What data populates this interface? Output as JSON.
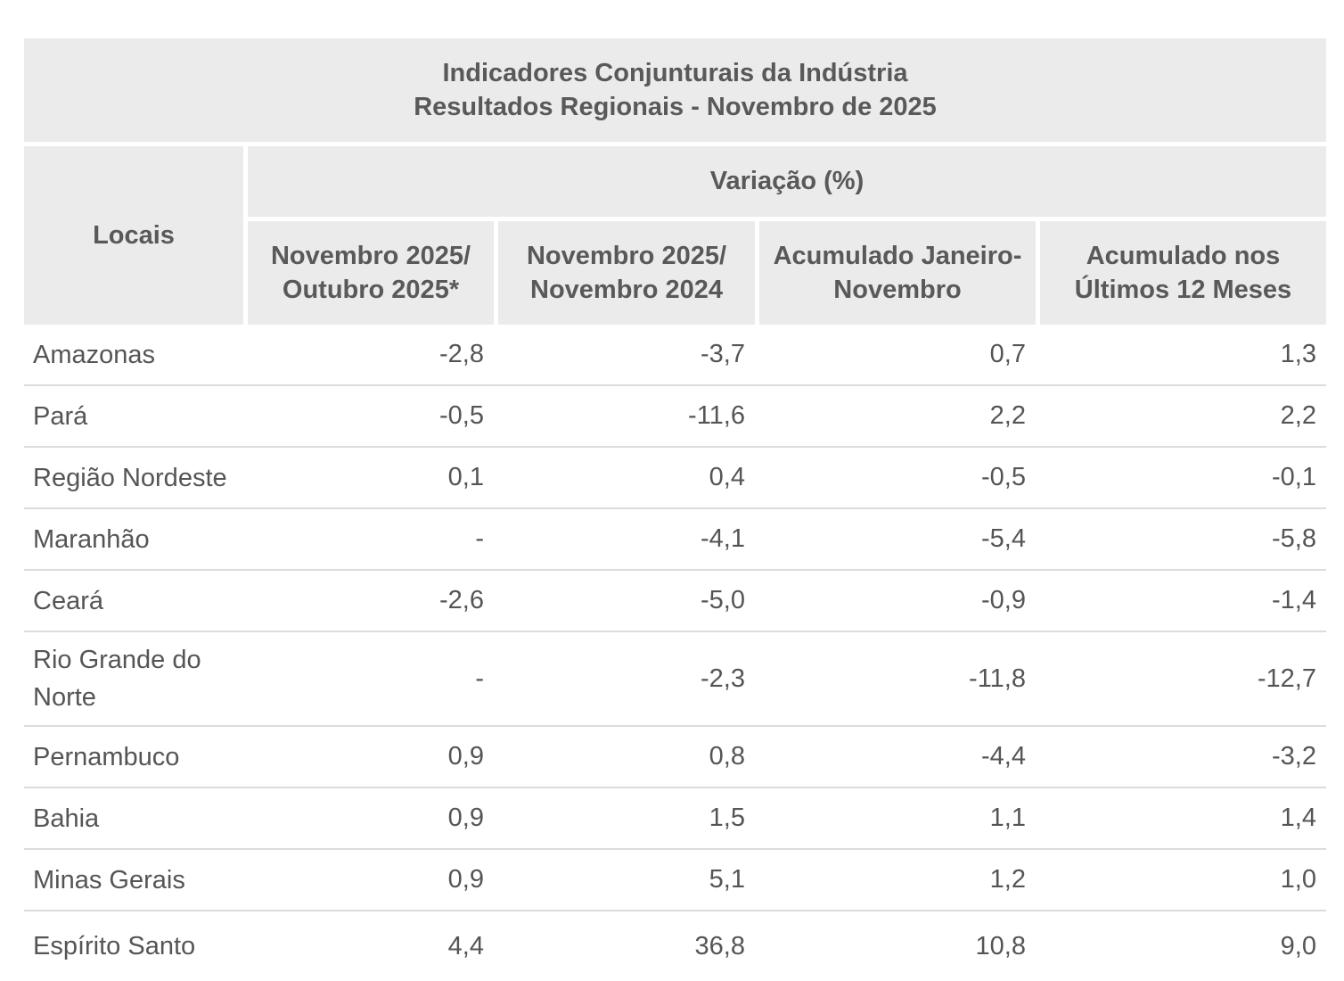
{
  "title": {
    "line1": "Indicadores Conjunturais da Indústria",
    "line2": "Resultados Regionais - Novembro de 2025"
  },
  "table": {
    "corner_header": "Locais",
    "group_header": "Variação (%)",
    "columns": [
      {
        "line1": "Novembro 2025/",
        "line2": "Outubro 2025*"
      },
      {
        "line1": "Novembro 2025/",
        "line2": "Novembro 2024"
      },
      {
        "line1": "Acumulado Janeiro-",
        "line2": "Novembro"
      },
      {
        "line1": "Acumulado nos",
        "line2": "Últimos 12 Meses"
      }
    ],
    "rows": [
      {
        "local": "Amazonas",
        "values": [
          "-2,8",
          "-3,7",
          "0,7",
          "1,3"
        ]
      },
      {
        "local": "Pará",
        "values": [
          "-0,5",
          "-11,6",
          "2,2",
          "2,2"
        ]
      },
      {
        "local": "Região Nordeste",
        "values": [
          "0,1",
          "0,4",
          "-0,5",
          "-0,1"
        ]
      },
      {
        "local": "Maranhão",
        "values": [
          "-",
          "-4,1",
          "-5,4",
          "-5,8"
        ]
      },
      {
        "local": "Ceará",
        "values": [
          "-2,6",
          "-5,0",
          "-0,9",
          "-1,4"
        ]
      },
      {
        "local": "Rio Grande do Norte",
        "values": [
          "-",
          "-2,3",
          "-11,8",
          "-12,7"
        ]
      },
      {
        "local": "Pernambuco",
        "values": [
          "0,9",
          "0,8",
          "-4,4",
          "-3,2"
        ]
      },
      {
        "local": "Bahia",
        "values": [
          "0,9",
          "1,5",
          "1,1",
          "1,4"
        ]
      },
      {
        "local": "Minas Gerais",
        "values": [
          "0,9",
          "5,1",
          "1,2",
          "1,0"
        ]
      },
      {
        "local": "Espírito Santo",
        "values": [
          "4,4",
          "36,8",
          "10,8",
          "9,0"
        ]
      }
    ]
  },
  "chart_data": {
    "type": "table",
    "title": "Indicadores Conjunturais da Indústria - Resultados Regionais - Novembro de 2025",
    "group_header": "Variação (%)",
    "columns": [
      "Locais",
      "Novembro 2025/ Outubro 2025*",
      "Novembro 2025/ Novembro 2024",
      "Acumulado Janeiro-Novembro",
      "Acumulado nos Últimos 12 Meses"
    ],
    "rows": [
      [
        "Amazonas",
        -2.8,
        -3.7,
        0.7,
        1.3
      ],
      [
        "Pará",
        -0.5,
        -11.6,
        2.2,
        2.2
      ],
      [
        "Região Nordeste",
        0.1,
        0.4,
        -0.5,
        -0.1
      ],
      [
        "Maranhão",
        null,
        -4.1,
        -5.4,
        -5.8
      ],
      [
        "Ceará",
        -2.6,
        -5.0,
        -0.9,
        -1.4
      ],
      [
        "Rio Grande do Norte",
        null,
        -2.3,
        -11.8,
        -12.7
      ],
      [
        "Pernambuco",
        0.9,
        0.8,
        -4.4,
        -3.2
      ],
      [
        "Bahia",
        0.9,
        1.5,
        1.1,
        1.4
      ],
      [
        "Minas Gerais",
        0.9,
        5.1,
        1.2,
        1.0
      ],
      [
        "Espírito Santo",
        4.4,
        36.8,
        10.8,
        9.0
      ]
    ]
  },
  "colors": {
    "header_background": "#ebebeb",
    "header_text": "#595959",
    "body_text": "#555555",
    "row_separator": "#dcdcdc",
    "page_background": "#ffffff"
  }
}
